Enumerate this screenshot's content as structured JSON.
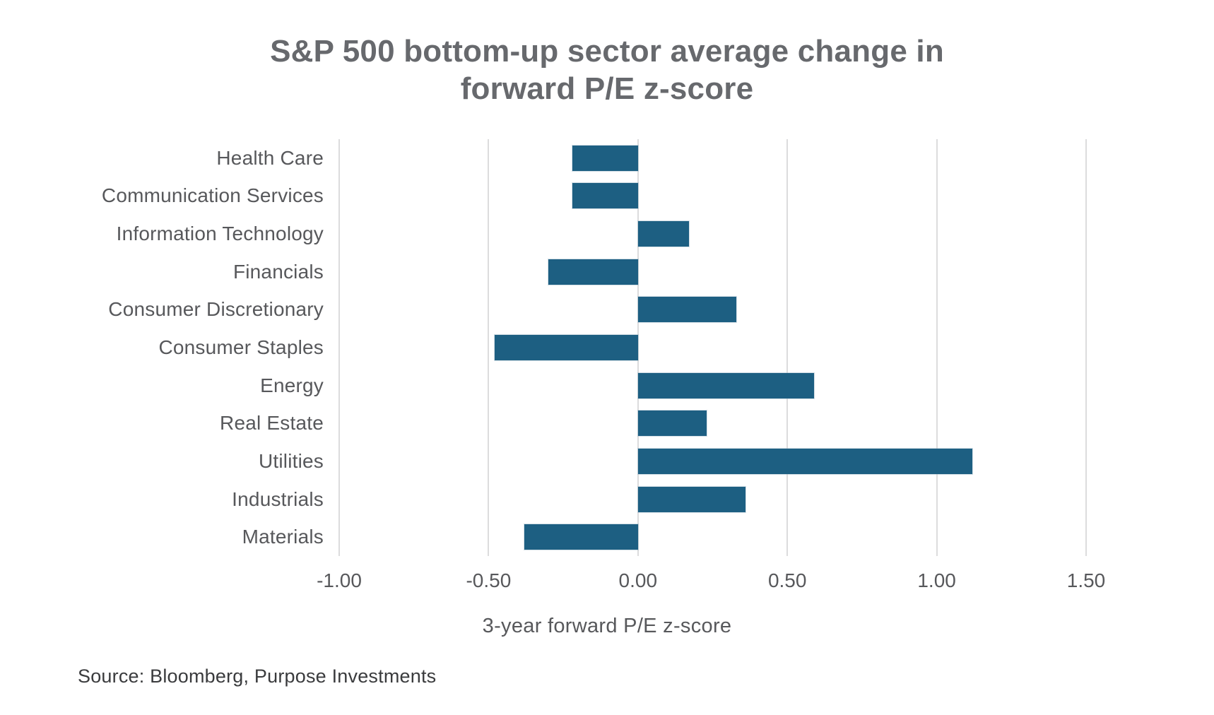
{
  "chart_data": {
    "type": "bar",
    "orientation": "horizontal",
    "title": "S&P 500 bottom-up sector average change in forward P/E z-score",
    "title_lines": [
      "S&P 500 bottom-up sector average change in",
      "forward P/E z-score"
    ],
    "categories": [
      "Health Care",
      "Communication Services",
      "Information Technology",
      "Financials",
      "Consumer Discretionary",
      "Consumer Staples",
      "Energy",
      "Real Estate",
      "Utilities",
      "Industrials",
      "Materials"
    ],
    "values": [
      -0.22,
      -0.22,
      0.17,
      -0.3,
      0.33,
      -0.48,
      0.59,
      0.23,
      1.12,
      0.36,
      -0.38
    ],
    "xlabel": "3-year forward P/E z-score",
    "x_ticks": [
      -1.0,
      -0.5,
      0.0,
      0.5,
      1.0,
      1.5
    ],
    "x_tick_labels": [
      "-1.00",
      "-0.50",
      "0.00",
      "0.50",
      "1.00",
      "1.50"
    ],
    "xlim": [
      -1.0,
      1.5
    ],
    "grid": "vertical",
    "legend": "none",
    "bar_color": "#1d5f82",
    "gridline_color": "#dcdcdd",
    "title_color": "#67696d",
    "label_color": "#57585b"
  },
  "footer": {
    "source": "Source: Bloomberg, Purpose Investments"
  }
}
